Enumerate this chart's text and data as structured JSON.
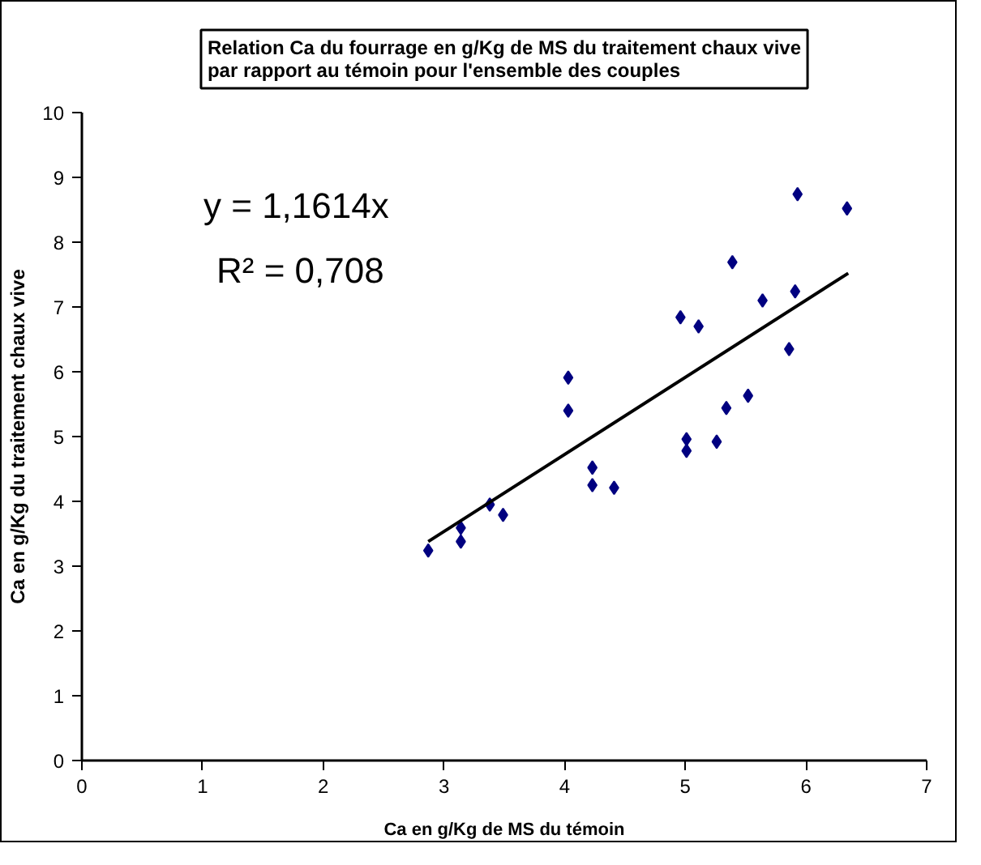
{
  "chart_data": {
    "type": "scatter",
    "title": "Relation Ca du fourrage en g/Kg de MS du traitement chaux vive\npar rapport au témoin pour l'ensemble des couples",
    "xlabel": "Ca en g/Kg de MS du témoin",
    "ylabel": "Ca en g/Kg du traitement chaux vive",
    "xlim": [
      0,
      7
    ],
    "ylim": [
      0,
      10
    ],
    "xticks": [
      0,
      1,
      2,
      3,
      4,
      5,
      6,
      7
    ],
    "yticks": [
      0,
      1,
      2,
      3,
      4,
      5,
      6,
      7,
      8,
      9,
      10
    ],
    "grid": false,
    "marker": "diamond",
    "series": [
      {
        "color": "#000080",
        "x": [
          2.87,
          3.14,
          3.14,
          3.38,
          3.49,
          4.03,
          4.03,
          4.23,
          4.23,
          4.41,
          4.96,
          5.11,
          5.01,
          5.01,
          5.26,
          5.34,
          5.39,
          5.52,
          5.64,
          5.86,
          5.91,
          5.93,
          6.34
        ],
        "values": [
          3.24,
          3.59,
          3.38,
          3.95,
          3.79,
          5.91,
          5.4,
          4.52,
          4.25,
          4.21,
          6.84,
          6.7,
          4.96,
          4.78,
          4.92,
          5.44,
          7.69,
          5.63,
          7.1,
          6.35,
          7.24,
          8.74,
          8.52
        ]
      },
      {
        "type": "line",
        "color": "#000000",
        "marker": "none",
        "x": [
          2.87,
          6.35
        ],
        "values": [
          3.38,
          7.52
        ]
      }
    ],
    "annotations": [
      "y = 1,1614x",
      "R² = 0,708"
    ]
  }
}
